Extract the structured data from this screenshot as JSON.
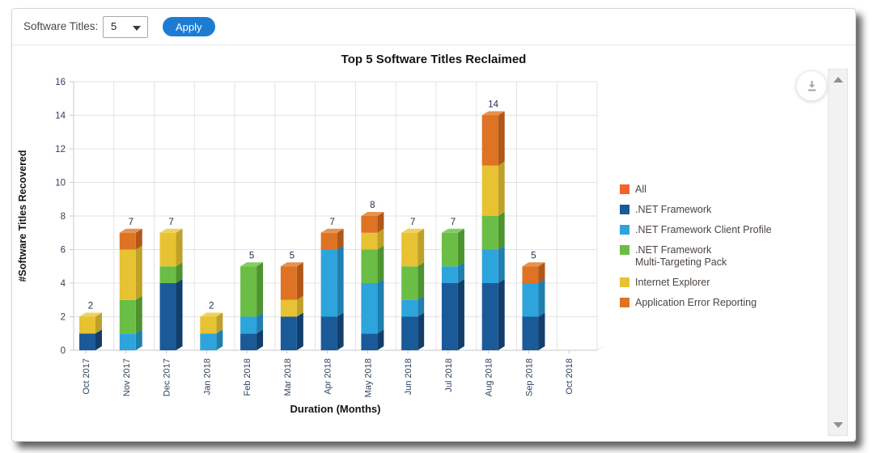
{
  "controls": {
    "label": "Software Titles:",
    "dropdown_value": "5",
    "apply_label": "Apply"
  },
  "chart_data": {
    "type": "bar",
    "stacked": true,
    "effect": "3d",
    "title": "Top 5 Software Titles Reclaimed",
    "xlabel": "Duration (Months)",
    "ylabel": "#Software Titles Recovered",
    "ylim": [
      0,
      16
    ],
    "yticks": [
      0,
      2,
      4,
      6,
      8,
      10,
      12,
      14,
      16
    ],
    "grid": true,
    "legend_position": "right",
    "categories": [
      "Oct 2017",
      "Nov 2017",
      "Dec 2017",
      "Jan 2018",
      "Feb 2018",
      "Mar 2018",
      "Apr 2018",
      "May 2018",
      "Jun 2018",
      "Jul 2018",
      "Aug 2018",
      "Sep 2018",
      "Oct 2018"
    ],
    "series": [
      {
        "name": "All",
        "color": "#f4632c",
        "side": "#c44a1d",
        "top": "#f78a5c",
        "values": [
          0,
          0,
          0,
          0,
          0,
          0,
          0,
          0,
          0,
          0,
          0,
          0,
          0
        ]
      },
      {
        "name": ".NET Framework",
        "color": "#1b5a99",
        "side": "#123e6b",
        "top": "#2f6fae",
        "values": [
          1,
          0,
          4,
          0,
          1,
          2,
          2,
          1,
          2,
          4,
          4,
          2,
          0
        ]
      },
      {
        "name": ".NET Framework Client Profile",
        "color": "#2ea4dd",
        "side": "#1f7fae",
        "top": "#5bbce8",
        "values": [
          0,
          1,
          0,
          1,
          1,
          0,
          4,
          3,
          1,
          1,
          2,
          2,
          0
        ]
      },
      {
        "name": ".NET Framework Multi-Targeting Pack",
        "color": "#6bbe45",
        "side": "#4e9330",
        "top": "#85cd61",
        "values": [
          0,
          2,
          1,
          0,
          3,
          0,
          0,
          2,
          2,
          2,
          2,
          0,
          0
        ]
      },
      {
        "name": "Internet Explorer",
        "color": "#e7c232",
        "side": "#bfa028",
        "top": "#edd35c",
        "values": [
          1,
          3,
          2,
          1,
          0,
          1,
          0,
          1,
          2,
          0,
          3,
          0,
          0
        ]
      },
      {
        "name": "Application Error Reporting",
        "color": "#de7323",
        "side": "#b0571a",
        "top": "#e8924e",
        "values": [
          0,
          1,
          0,
          0,
          0,
          2,
          1,
          1,
          0,
          0,
          3,
          1,
          0
        ]
      }
    ],
    "totals": [
      2,
      7,
      7,
      2,
      5,
      5,
      7,
      8,
      7,
      7,
      14,
      5,
      0
    ],
    "axis_text_color": "#2e425e",
    "value_label_color": "#1b2a4a",
    "gridline_color": "#e3e3e3",
    "axisline_color": "#c8c8c8"
  },
  "legend": {
    "items": [
      {
        "label": "All",
        "label2": "",
        "color": "#f4632c"
      },
      {
        "label": ".NET Framework",
        "label2": "",
        "color": "#1b5a99"
      },
      {
        "label": ".NET Framework Client Profile",
        "label2": "",
        "color": "#2ea4dd"
      },
      {
        "label": ".NET Framework",
        "label2": "Multi-Targeting Pack",
        "color": "#6bbe45"
      },
      {
        "label": "Internet Explorer",
        "label2": "",
        "color": "#e7c232"
      },
      {
        "label": "Application Error Reporting",
        "label2": "",
        "color": "#de7323"
      }
    ]
  }
}
